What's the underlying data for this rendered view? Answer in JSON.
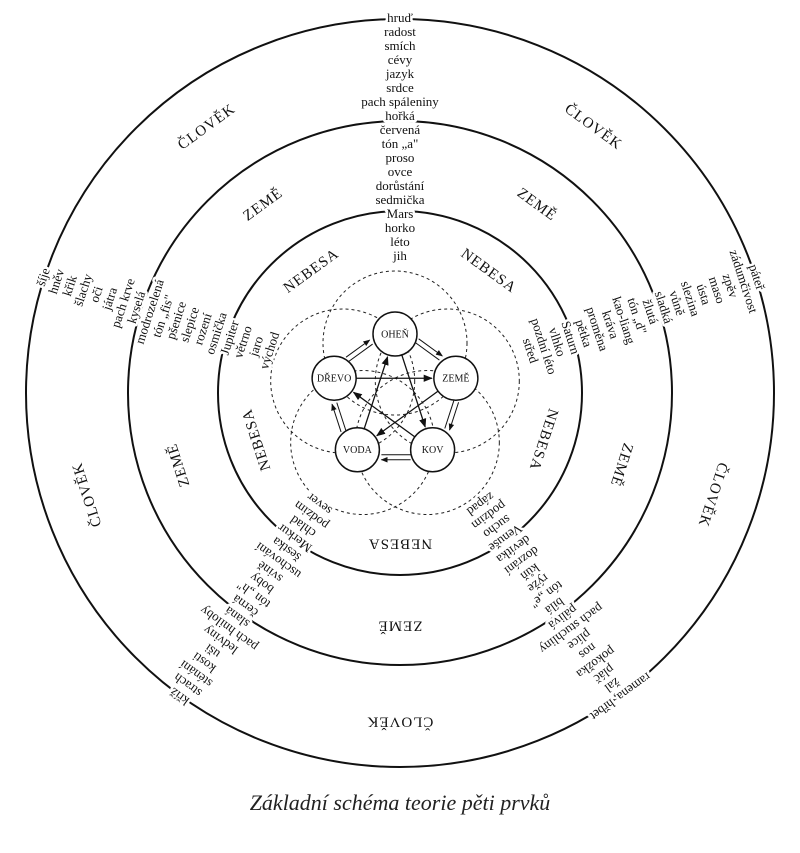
{
  "caption": "Základní schéma teorie pěti prvků",
  "rings": {
    "outer": "ČLOVĚK",
    "middle": "ZEMĚ",
    "inner": "NEBESA"
  },
  "elements": [
    "OHEŇ",
    "ZEMĚ",
    "KOV",
    "VODA",
    "DŘEVO"
  ],
  "spokes": [
    {
      "direction": "top",
      "words": [
        "hruď",
        "radost",
        "smích",
        "cévy",
        "jazyk",
        "srdce",
        "pach spáleniny",
        "hořká",
        "červená",
        "tón „a\"",
        "proso",
        "ovce",
        "dorůstání",
        "sedmička",
        "Mars",
        "horko",
        "léto",
        "jih"
      ]
    },
    {
      "direction": "right",
      "words": [
        "páteř",
        "zádumčivost",
        "zpěv",
        "maso",
        "ústa",
        "slezina",
        "vůně",
        "sladká",
        "žlutá",
        "tón „d\"",
        "kao-liang",
        "kráva",
        "proměna",
        "pětka",
        "Saturn",
        "vlhko",
        "pozdní léto",
        "střed"
      ]
    },
    {
      "direction": "bottom-right",
      "words": [
        "ramena, hřbet",
        "žal",
        "pláč",
        "pokožka",
        "nos",
        "plíce",
        "pach stuchliny",
        "pálivá",
        "bílá",
        "tón „e\"",
        "rýže",
        "kůň",
        "dozrání",
        "devítka",
        "Venuše",
        "sucho",
        "podzim",
        "západ"
      ]
    },
    {
      "direction": "bottom-left",
      "words": [
        "kříž",
        "strach",
        "sténání",
        "kosti",
        "uši",
        "ledviny",
        "pach hniloby",
        "slaná",
        "černá",
        "tón „h\"",
        "boby",
        "svině",
        "uschování",
        "šestka",
        "Merkur",
        "chlad",
        "podzim",
        "sever"
      ]
    },
    {
      "direction": "left",
      "words": [
        "šíje",
        "hněv",
        "křik",
        "šlachy",
        "oči",
        "játra",
        "pach krve",
        "kyselá",
        "modrozelená",
        "tón „fis\"",
        "pšenice",
        "slepice",
        "rození",
        "osmička",
        "Jupiter",
        "větrno",
        "jaro",
        "východ"
      ]
    }
  ]
}
